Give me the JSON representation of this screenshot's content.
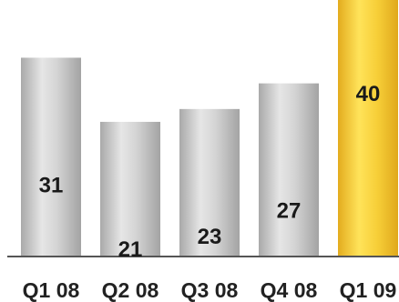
{
  "chart_data": {
    "type": "bar",
    "categories": [
      "Q1 08",
      "Q2 08",
      "Q3 08",
      "Q4 08",
      "Q1 09"
    ],
    "values": [
      31,
      21,
      23,
      27,
      40
    ],
    "highlight_index": 4,
    "ylim": [
      0,
      40
    ],
    "grid": false,
    "colors": {
      "bar": "#c8c8c8",
      "bar_highlight": "#f2c531",
      "axis": "#555555"
    }
  }
}
